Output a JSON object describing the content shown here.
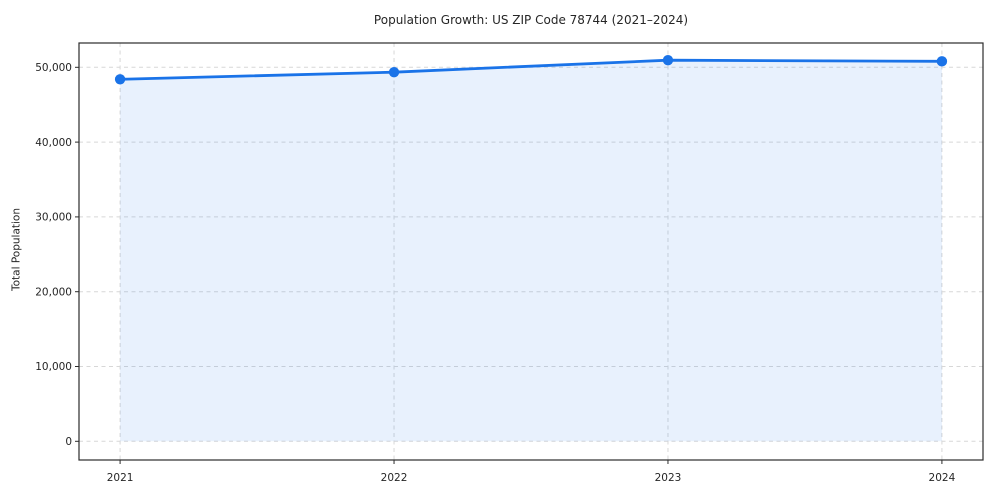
{
  "figure": {
    "background": "#ffffff"
  },
  "chart_data": {
    "type": "area",
    "title": "Population Growth: US ZIP Code 78744 (2021–2024)",
    "xlabel": "",
    "ylabel": "Total Population",
    "x": [
      2021,
      2022,
      2023,
      2024
    ],
    "xtick_labels": [
      "2021",
      "2022",
      "2023",
      "2024"
    ],
    "series": [
      {
        "name": "Total Population",
        "values": [
          48400,
          49350,
          50950,
          50800
        ]
      }
    ],
    "yticks": [
      0,
      10000,
      20000,
      30000,
      40000,
      50000
    ],
    "ytick_labels": [
      "0",
      "10,000",
      "20,000",
      "30,000",
      "40,000",
      "50,000"
    ],
    "xlim": [
      2020.85,
      2024.15
    ],
    "ylim": [
      -2500,
      53250
    ],
    "grid": true,
    "grid_style": "dashed",
    "legend_position": "none",
    "marker": "circle",
    "style": {
      "line_color": "#1a73e8",
      "marker_color": "#1a73e8",
      "fill_color": "rgba(26,115,232,0.10)",
      "grid_color": "#d7d7d7",
      "axis_color": "#2b2b2b",
      "text_color": "#262626"
    }
  }
}
